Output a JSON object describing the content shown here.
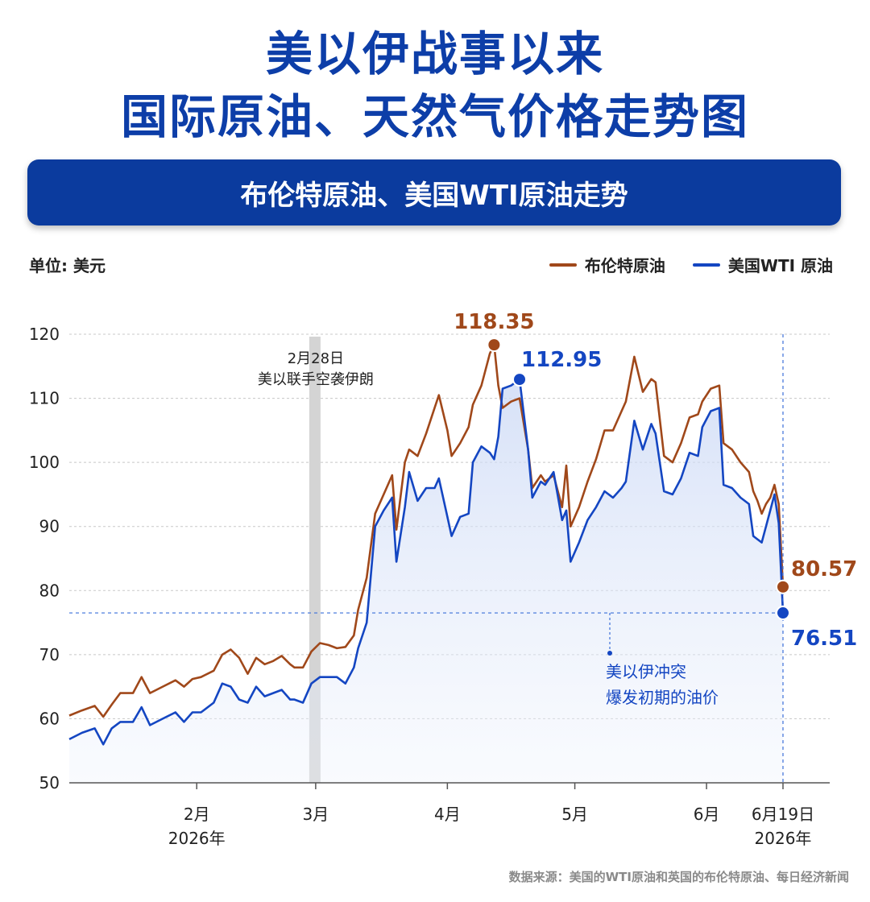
{
  "header": {
    "title_line1": "美以伊战事以来",
    "title_line2": "国际原油、天然气价格走势图",
    "subtitle": "布伦特原油、美国WTI原油走势"
  },
  "unit_label": "单位: 美元",
  "legend": {
    "brent": "布伦特原油",
    "wti": "美国WTI 原油"
  },
  "source": "数据来源：美国的WTI原油和英国的布伦特原油、每日经济新闻",
  "colors": {
    "brent": "#a0481a",
    "wti": "#1446c2",
    "title": "#0d3ea8",
    "banner": "#0b3b9e"
  },
  "chart_data": {
    "type": "line",
    "ylim": [
      50,
      120
    ],
    "grid": true,
    "legend_position": "top-right",
    "y_ticks": [
      "50",
      "60",
      "70",
      "80",
      "90",
      "100",
      "110",
      "120"
    ],
    "x_ticks": [
      {
        "date": "2026-02-01",
        "label": "2月",
        "sublabel": "2026年"
      },
      {
        "date": "2026-03-01",
        "label": "3月",
        "sublabel": ""
      },
      {
        "date": "2026-04-01",
        "label": "4月",
        "sublabel": ""
      },
      {
        "date": "2026-05-01",
        "label": "5月",
        "sublabel": ""
      },
      {
        "date": "2026-06-01",
        "label": "6月",
        "sublabel": ""
      },
      {
        "date": "2026-06-19",
        "label": "6月19日",
        "sublabel": "2026年"
      }
    ],
    "x_range": [
      "2026-01-02",
      "2026-06-30"
    ],
    "series": [
      {
        "name": "布伦特原油",
        "key": "brent",
        "points": [
          [
            "2026-01-02",
            60.5
          ],
          [
            "2026-01-05",
            61.3
          ],
          [
            "2026-01-08",
            62.0
          ],
          [
            "2026-01-10",
            60.3
          ],
          [
            "2026-01-12",
            62.2
          ],
          [
            "2026-01-14",
            64.0
          ],
          [
            "2026-01-17",
            64.0
          ],
          [
            "2026-01-19",
            66.5
          ],
          [
            "2026-01-21",
            64.0
          ],
          [
            "2026-01-24",
            65.0
          ],
          [
            "2026-01-27",
            66.0
          ],
          [
            "2026-01-29",
            65.0
          ],
          [
            "2026-01-31",
            66.2
          ],
          [
            "2026-02-02",
            66.5
          ],
          [
            "2026-02-05",
            67.5
          ],
          [
            "2026-02-07",
            70.0
          ],
          [
            "2026-02-09",
            70.8
          ],
          [
            "2026-02-11",
            69.5
          ],
          [
            "2026-02-13",
            67.0
          ],
          [
            "2026-02-15",
            69.5
          ],
          [
            "2026-02-17",
            68.5
          ],
          [
            "2026-02-19",
            69.0
          ],
          [
            "2026-02-21",
            69.8
          ],
          [
            "2026-02-23",
            68.5
          ],
          [
            "2026-02-24",
            68.0
          ],
          [
            "2026-02-26",
            68.0
          ],
          [
            "2026-02-28",
            70.5
          ],
          [
            "2026-03-02",
            71.8
          ],
          [
            "2026-03-04",
            71.5
          ],
          [
            "2026-03-06",
            71.0
          ],
          [
            "2026-03-08",
            71.2
          ],
          [
            "2026-03-10",
            73.0
          ],
          [
            "2026-03-11",
            77.0
          ],
          [
            "2026-03-13",
            82.0
          ],
          [
            "2026-03-15",
            92.0
          ],
          [
            "2026-03-17",
            95.0
          ],
          [
            "2026-03-19",
            98.0
          ],
          [
            "2026-03-20",
            89.5
          ],
          [
            "2026-03-22",
            100.0
          ],
          [
            "2026-03-23",
            102.0
          ],
          [
            "2026-03-25",
            101.0
          ],
          [
            "2026-03-27",
            104.5
          ],
          [
            "2026-03-29",
            108.5
          ],
          [
            "2026-03-30",
            110.5
          ],
          [
            "2026-04-01",
            105.0
          ],
          [
            "2026-04-02",
            101.0
          ],
          [
            "2026-04-04",
            103.0
          ],
          [
            "2026-04-06",
            105.5
          ],
          [
            "2026-04-07",
            109.0
          ],
          [
            "2026-04-09",
            112.0
          ],
          [
            "2026-04-11",
            117.0
          ],
          [
            "2026-04-12",
            118.35
          ],
          [
            "2026-04-13",
            112.0
          ],
          [
            "2026-04-14",
            108.5
          ],
          [
            "2026-04-16",
            109.5
          ],
          [
            "2026-04-18",
            110.0
          ],
          [
            "2026-04-20",
            102.0
          ],
          [
            "2026-04-21",
            96.0
          ],
          [
            "2026-04-23",
            98.0
          ],
          [
            "2026-04-24",
            97.0
          ],
          [
            "2026-04-26",
            98.0
          ],
          [
            "2026-04-28",
            93.0
          ],
          [
            "2026-04-29",
            99.5
          ],
          [
            "2026-04-30",
            90.0
          ],
          [
            "2026-05-02",
            93.0
          ],
          [
            "2026-05-04",
            97.0
          ],
          [
            "2026-05-06",
            100.5
          ],
          [
            "2026-05-08",
            105.0
          ],
          [
            "2026-05-10",
            105.0
          ],
          [
            "2026-05-12",
            108.0
          ],
          [
            "2026-05-13",
            109.5
          ],
          [
            "2026-05-15",
            116.5
          ],
          [
            "2026-05-17",
            111.0
          ],
          [
            "2026-05-19",
            113.0
          ],
          [
            "2026-05-20",
            112.5
          ],
          [
            "2026-05-22",
            101.0
          ],
          [
            "2026-05-24",
            100.0
          ],
          [
            "2026-05-26",
            103.0
          ],
          [
            "2026-05-28",
            107.0
          ],
          [
            "2026-05-30",
            107.5
          ],
          [
            "2026-05-31",
            109.5
          ],
          [
            "2026-06-02",
            111.5
          ],
          [
            "2026-06-04",
            112.0
          ],
          [
            "2026-06-05",
            103.0
          ],
          [
            "2026-06-07",
            102.0
          ],
          [
            "2026-06-09",
            100.0
          ],
          [
            "2026-06-11",
            98.5
          ],
          [
            "2026-06-12",
            95.5
          ],
          [
            "2026-06-13",
            94.0
          ],
          [
            "2026-06-14",
            92.0
          ],
          [
            "2026-06-15",
            93.5
          ],
          [
            "2026-06-16",
            94.5
          ],
          [
            "2026-06-17",
            96.5
          ],
          [
            "2026-06-18",
            93.5
          ],
          [
            "2026-06-19",
            80.57
          ]
        ]
      },
      {
        "name": "美国WTI 原油",
        "key": "wti",
        "points": [
          [
            "2026-01-02",
            56.8
          ],
          [
            "2026-01-05",
            57.8
          ],
          [
            "2026-01-08",
            58.5
          ],
          [
            "2026-01-10",
            56.0
          ],
          [
            "2026-01-12",
            58.5
          ],
          [
            "2026-01-14",
            59.5
          ],
          [
            "2026-01-17",
            59.5
          ],
          [
            "2026-01-19",
            61.8
          ],
          [
            "2026-01-21",
            59.0
          ],
          [
            "2026-01-24",
            60.0
          ],
          [
            "2026-01-27",
            61.0
          ],
          [
            "2026-01-29",
            59.5
          ],
          [
            "2026-01-31",
            61.0
          ],
          [
            "2026-02-02",
            61.0
          ],
          [
            "2026-02-05",
            62.5
          ],
          [
            "2026-02-07",
            65.5
          ],
          [
            "2026-02-09",
            65.0
          ],
          [
            "2026-02-11",
            63.0
          ],
          [
            "2026-02-13",
            62.5
          ],
          [
            "2026-02-15",
            65.0
          ],
          [
            "2026-02-17",
            63.5
          ],
          [
            "2026-02-19",
            64.0
          ],
          [
            "2026-02-21",
            64.5
          ],
          [
            "2026-02-23",
            63.0
          ],
          [
            "2026-02-24",
            63.0
          ],
          [
            "2026-02-26",
            62.5
          ],
          [
            "2026-02-28",
            65.5
          ],
          [
            "2026-03-02",
            66.5
          ],
          [
            "2026-03-04",
            66.5
          ],
          [
            "2026-03-06",
            66.5
          ],
          [
            "2026-03-08",
            65.5
          ],
          [
            "2026-03-10",
            68.0
          ],
          [
            "2026-03-11",
            71.0
          ],
          [
            "2026-03-13",
            75.0
          ],
          [
            "2026-03-15",
            90.0
          ],
          [
            "2026-03-17",
            92.5
          ],
          [
            "2026-03-19",
            94.5
          ],
          [
            "2026-03-20",
            84.5
          ],
          [
            "2026-03-22",
            93.0
          ],
          [
            "2026-03-23",
            98.5
          ],
          [
            "2026-03-25",
            94.0
          ],
          [
            "2026-03-27",
            96.0
          ],
          [
            "2026-03-29",
            96.0
          ],
          [
            "2026-03-30",
            97.5
          ],
          [
            "2026-04-01",
            91.5
          ],
          [
            "2026-04-02",
            88.5
          ],
          [
            "2026-04-04",
            91.5
          ],
          [
            "2026-04-06",
            92.0
          ],
          [
            "2026-04-07",
            100.0
          ],
          [
            "2026-04-09",
            102.5
          ],
          [
            "2026-04-11",
            101.5
          ],
          [
            "2026-04-12",
            100.5
          ],
          [
            "2026-04-13",
            104.0
          ],
          [
            "2026-04-14",
            111.5
          ],
          [
            "2026-04-16",
            112.0
          ],
          [
            "2026-04-18",
            112.95
          ],
          [
            "2026-04-20",
            102.0
          ],
          [
            "2026-04-21",
            94.5
          ],
          [
            "2026-04-23",
            97.0
          ],
          [
            "2026-04-24",
            96.5
          ],
          [
            "2026-04-26",
            98.5
          ],
          [
            "2026-04-28",
            91.0
          ],
          [
            "2026-04-29",
            92.5
          ],
          [
            "2026-04-30",
            84.5
          ],
          [
            "2026-05-02",
            87.5
          ],
          [
            "2026-05-04",
            91.0
          ],
          [
            "2026-05-06",
            93.0
          ],
          [
            "2026-05-08",
            95.5
          ],
          [
            "2026-05-10",
            94.5
          ],
          [
            "2026-05-12",
            96.0
          ],
          [
            "2026-05-13",
            97.0
          ],
          [
            "2026-05-15",
            106.5
          ],
          [
            "2026-05-17",
            102.0
          ],
          [
            "2026-05-19",
            106.0
          ],
          [
            "2026-05-20",
            104.5
          ],
          [
            "2026-05-22",
            95.5
          ],
          [
            "2026-05-24",
            95.0
          ],
          [
            "2026-05-26",
            97.5
          ],
          [
            "2026-05-28",
            101.5
          ],
          [
            "2026-05-30",
            101.0
          ],
          [
            "2026-05-31",
            105.5
          ],
          [
            "2026-06-02",
            108.0
          ],
          [
            "2026-06-04",
            108.5
          ],
          [
            "2026-06-05",
            96.5
          ],
          [
            "2026-06-07",
            96.0
          ],
          [
            "2026-06-09",
            94.5
          ],
          [
            "2026-06-11",
            93.5
          ],
          [
            "2026-06-12",
            88.5
          ],
          [
            "2026-06-13",
            88.0
          ],
          [
            "2026-06-14",
            87.5
          ],
          [
            "2026-06-15",
            90.0
          ],
          [
            "2026-06-16",
            92.5
          ],
          [
            "2026-06-17",
            95.0
          ],
          [
            "2026-06-18",
            90.5
          ],
          [
            "2026-06-19",
            76.51
          ]
        ]
      }
    ],
    "labeled_points": [
      {
        "series": "brent",
        "date": "2026-04-12",
        "value": 118.35,
        "label": "118.35"
      },
      {
        "series": "wti",
        "date": "2026-04-18",
        "value": 112.95,
        "label": "112.95"
      },
      {
        "series": "brent",
        "date": "2026-06-19",
        "value": 80.57,
        "label": "80.57"
      },
      {
        "series": "wti",
        "date": "2026-06-19",
        "value": 76.51,
        "label": "76.51"
      }
    ],
    "annotations": [
      {
        "type": "event-band",
        "date": "2026-03-01",
        "lines": [
          "2月28日",
          "美以联手空袭伊朗"
        ]
      },
      {
        "type": "reference-line",
        "value": 76.51,
        "lines": [
          "美以伊冲突",
          "爆发初期的油价"
        ]
      }
    ]
  }
}
